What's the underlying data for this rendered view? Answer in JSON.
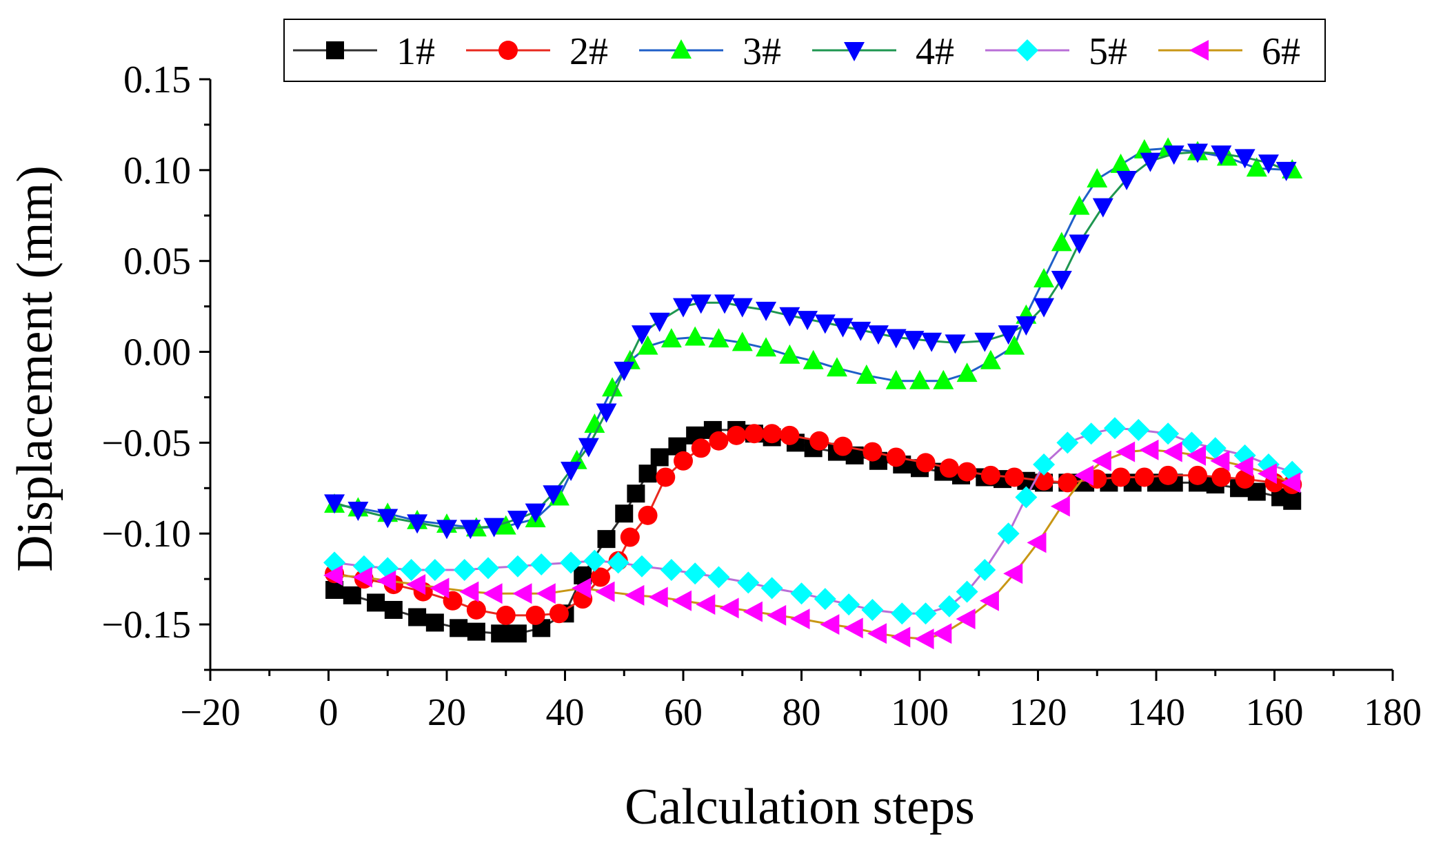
{
  "chart_data": {
    "type": "line",
    "title": "",
    "xlabel": "Calculation steps",
    "ylabel": "Displacement (mm)",
    "xlim": [
      -20,
      180
    ],
    "ylim": [
      -0.175,
      0.15
    ],
    "xticks": [
      -20,
      0,
      20,
      40,
      60,
      80,
      100,
      120,
      140,
      160,
      180
    ],
    "xtick_labels": [
      "−20",
      "0",
      "20",
      "40",
      "60",
      "80",
      "100",
      "120",
      "140",
      "160",
      "180"
    ],
    "yticks": [
      -0.15,
      -0.1,
      -0.05,
      0.0,
      0.05,
      0.1,
      0.15
    ],
    "ytick_labels": [
      "−0.15",
      "−0.10",
      "−0.05",
      "0.00",
      "0.05",
      "0.10",
      "0.15"
    ],
    "grid": false,
    "legend_position": "top",
    "series": [
      {
        "name": "1#",
        "line_color": "#303030",
        "marker_color": "#000000",
        "marker": "square",
        "x": [
          1,
          4,
          8,
          11,
          15,
          18,
          22,
          25,
          29,
          32,
          36,
          40,
          43,
          47,
          50,
          52,
          54,
          56,
          59,
          62,
          65,
          69,
          72,
          75,
          79,
          82,
          86,
          89,
          93,
          97,
          100,
          104,
          107,
          111,
          114,
          118,
          121,
          125,
          128,
          132,
          136,
          140,
          143,
          147,
          150,
          154,
          157,
          161,
          163
        ],
        "y": [
          -0.131,
          -0.134,
          -0.138,
          -0.142,
          -0.146,
          -0.149,
          -0.152,
          -0.154,
          -0.155,
          -0.155,
          -0.152,
          -0.144,
          -0.123,
          -0.103,
          -0.089,
          -0.078,
          -0.067,
          -0.058,
          -0.052,
          -0.046,
          -0.043,
          -0.043,
          -0.045,
          -0.047,
          -0.05,
          -0.053,
          -0.055,
          -0.057,
          -0.06,
          -0.062,
          -0.064,
          -0.066,
          -0.068,
          -0.069,
          -0.07,
          -0.071,
          -0.072,
          -0.072,
          -0.072,
          -0.072,
          -0.072,
          -0.072,
          -0.072,
          -0.072,
          -0.073,
          -0.075,
          -0.077,
          -0.08,
          -0.082
        ]
      },
      {
        "name": "2#",
        "line_color": "#e8281e",
        "marker_color": "#ff0000",
        "marker": "circle",
        "x": [
          1,
          6,
          11,
          16,
          21,
          25,
          30,
          35,
          39,
          43,
          46,
          49,
          51,
          54,
          57,
          60,
          63,
          66,
          69,
          72,
          75,
          78,
          83,
          87,
          92,
          96,
          101,
          105,
          108,
          112,
          116,
          121,
          125,
          130,
          134,
          138,
          142,
          147,
          151,
          155,
          160,
          163
        ],
        "y": [
          -0.122,
          -0.125,
          -0.128,
          -0.132,
          -0.137,
          -0.142,
          -0.145,
          -0.145,
          -0.144,
          -0.136,
          -0.124,
          -0.115,
          -0.102,
          -0.09,
          -0.069,
          -0.06,
          -0.053,
          -0.049,
          -0.046,
          -0.045,
          -0.045,
          -0.046,
          -0.049,
          -0.052,
          -0.055,
          -0.058,
          -0.061,
          -0.064,
          -0.066,
          -0.068,
          -0.069,
          -0.071,
          -0.072,
          -0.07,
          -0.069,
          -0.069,
          -0.068,
          -0.068,
          -0.069,
          -0.07,
          -0.072,
          -0.073
        ]
      },
      {
        "name": "3#",
        "line_color": "#1f5fc8",
        "marker_color": "#00ff00",
        "marker": "triangle-up",
        "x": [
          1,
          5,
          10,
          15,
          20,
          25,
          30,
          35,
          39,
          42,
          45,
          48,
          51,
          54,
          58,
          62,
          66,
          70,
          74,
          78,
          82,
          86,
          91,
          96,
          100,
          104,
          108,
          112,
          116,
          118,
          121,
          124,
          127,
          130,
          134,
          138,
          142,
          147,
          152,
          157,
          163
        ],
        "y": [
          -0.084,
          -0.086,
          -0.089,
          -0.093,
          -0.095,
          -0.097,
          -0.096,
          -0.092,
          -0.08,
          -0.06,
          -0.04,
          -0.02,
          -0.005,
          0.003,
          0.007,
          0.008,
          0.007,
          0.005,
          0.002,
          -0.002,
          -0.005,
          -0.009,
          -0.013,
          -0.016,
          -0.016,
          -0.016,
          -0.012,
          -0.005,
          0.003,
          0.02,
          0.04,
          0.06,
          0.08,
          0.095,
          0.103,
          0.111,
          0.112,
          0.11,
          0.107,
          0.101,
          0.1
        ]
      },
      {
        "name": "4#",
        "line_color": "#1e9650",
        "marker_color": "#0000ff",
        "marker": "triangle-down",
        "x": [
          1,
          5,
          10,
          15,
          20,
          24,
          28,
          32,
          35,
          38,
          41,
          44,
          47,
          50,
          53,
          56,
          60,
          63,
          67,
          70,
          74,
          78,
          81,
          84,
          87,
          90,
          93,
          96,
          99,
          102,
          106,
          111,
          115,
          118,
          121,
          124,
          127,
          131,
          135,
          139,
          143,
          147,
          151,
          155,
          159,
          162
        ],
        "y": [
          -0.083,
          -0.087,
          -0.091,
          -0.094,
          -0.097,
          -0.097,
          -0.096,
          -0.092,
          -0.088,
          -0.078,
          -0.065,
          -0.052,
          -0.033,
          -0.01,
          0.01,
          0.017,
          0.025,
          0.027,
          0.027,
          0.025,
          0.023,
          0.02,
          0.018,
          0.016,
          0.014,
          0.012,
          0.01,
          0.008,
          0.007,
          0.006,
          0.005,
          0.006,
          0.01,
          0.015,
          0.025,
          0.04,
          0.06,
          0.08,
          0.095,
          0.105,
          0.109,
          0.11,
          0.109,
          0.107,
          0.104,
          0.1
        ]
      },
      {
        "name": "5#",
        "line_color": "#b96ed7",
        "marker_color": "#00ffff",
        "marker": "diamond",
        "x": [
          1,
          6,
          10,
          14,
          18,
          23,
          27,
          32,
          36,
          41,
          45,
          49,
          53,
          58,
          62,
          66,
          71,
          75,
          80,
          84,
          88,
          92,
          97,
          101,
          105,
          108,
          111,
          115,
          118,
          121,
          125,
          129,
          133,
          137,
          142,
          146,
          150,
          155,
          159,
          163
        ],
        "y": [
          -0.116,
          -0.118,
          -0.119,
          -0.12,
          -0.12,
          -0.12,
          -0.119,
          -0.118,
          -0.117,
          -0.116,
          -0.115,
          -0.116,
          -0.118,
          -0.12,
          -0.122,
          -0.124,
          -0.127,
          -0.13,
          -0.133,
          -0.136,
          -0.139,
          -0.142,
          -0.144,
          -0.144,
          -0.14,
          -0.132,
          -0.12,
          -0.1,
          -0.08,
          -0.062,
          -0.05,
          -0.045,
          -0.042,
          -0.043,
          -0.045,
          -0.05,
          -0.053,
          -0.057,
          -0.062,
          -0.066
        ]
      },
      {
        "name": "6#",
        "line_color": "#c89614",
        "marker_color": "#ff00ff",
        "marker": "triangle-left",
        "x": [
          1,
          6,
          10,
          15,
          19,
          24,
          28,
          33,
          37,
          43,
          47,
          52,
          56,
          60,
          64,
          68,
          72,
          76,
          80,
          85,
          89,
          93,
          97,
          101,
          104,
          108,
          112,
          116,
          120,
          124,
          128,
          131,
          135,
          139,
          143,
          147,
          151,
          155,
          159,
          163
        ],
        "y": [
          -0.123,
          -0.124,
          -0.126,
          -0.128,
          -0.13,
          -0.132,
          -0.133,
          -0.133,
          -0.133,
          -0.13,
          -0.132,
          -0.134,
          -0.135,
          -0.137,
          -0.139,
          -0.141,
          -0.143,
          -0.145,
          -0.147,
          -0.15,
          -0.152,
          -0.155,
          -0.157,
          -0.158,
          -0.155,
          -0.147,
          -0.137,
          -0.122,
          -0.105,
          -0.085,
          -0.068,
          -0.06,
          -0.055,
          -0.054,
          -0.055,
          -0.057,
          -0.06,
          -0.063,
          -0.067,
          -0.072
        ]
      }
    ]
  }
}
